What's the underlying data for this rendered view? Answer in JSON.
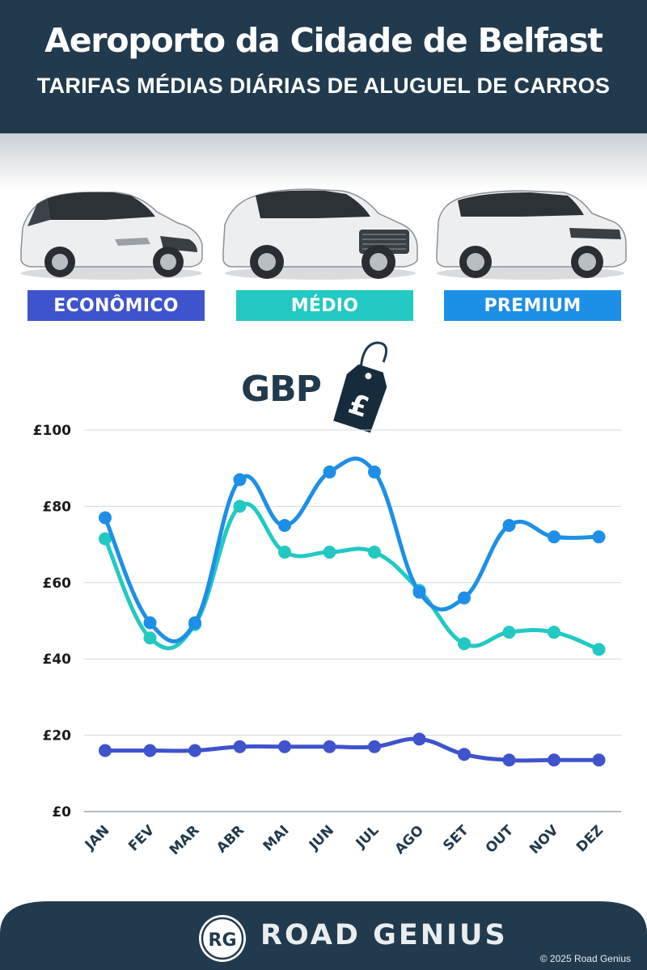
{
  "header": {
    "title": "Aeroporto da Cidade de Belfast",
    "subtitle": "TARIFAS MÉDIAS DIÁRIAS DE ALUGUEL DE CARROS"
  },
  "categories": [
    {
      "label": "ECONÔMICO",
      "color": "#3f53cc"
    },
    {
      "label": "MÉDIO",
      "color": "#22c9c3"
    },
    {
      "label": "PREMIUM",
      "color": "#1e8fe6"
    }
  ],
  "currency": "GBP",
  "currency_symbol": "£",
  "chart_data": {
    "type": "line",
    "x": [
      "JAN",
      "FEV",
      "MAR",
      "ABR",
      "MAI",
      "JUN",
      "JUL",
      "AGO",
      "SET",
      "OUT",
      "NOV",
      "DEZ"
    ],
    "ylim": [
      0,
      100
    ],
    "yticks": [
      "£0",
      "£20",
      "£40",
      "£60",
      "£80",
      "£100"
    ],
    "grid": true,
    "series": [
      {
        "name": "ECONÔMICO",
        "color": "#3f53cc",
        "values": [
          16,
          16,
          16,
          17,
          17,
          17,
          17,
          19,
          15,
          13.5,
          13.5,
          13.5
        ]
      },
      {
        "name": "MÉDIO",
        "color": "#22c9c3",
        "values": [
          71.5,
          45.5,
          49,
          80,
          68,
          68,
          68,
          58,
          44,
          47,
          47,
          42.5
        ]
      },
      {
        "name": "PREMIUM",
        "color": "#1e8fe6",
        "values": [
          77,
          49.5,
          49.5,
          87,
          75,
          89,
          89,
          57.5,
          56,
          75,
          72,
          72
        ]
      }
    ]
  },
  "colors": {
    "header_bg": "#223a4d",
    "footer_bg": "#223a4d",
    "text_dark": "#223a4d"
  },
  "footer": {
    "logo_initials": "RG",
    "brand": "ROAD GENIUS",
    "copyright": "© 2025 Road Genius"
  }
}
